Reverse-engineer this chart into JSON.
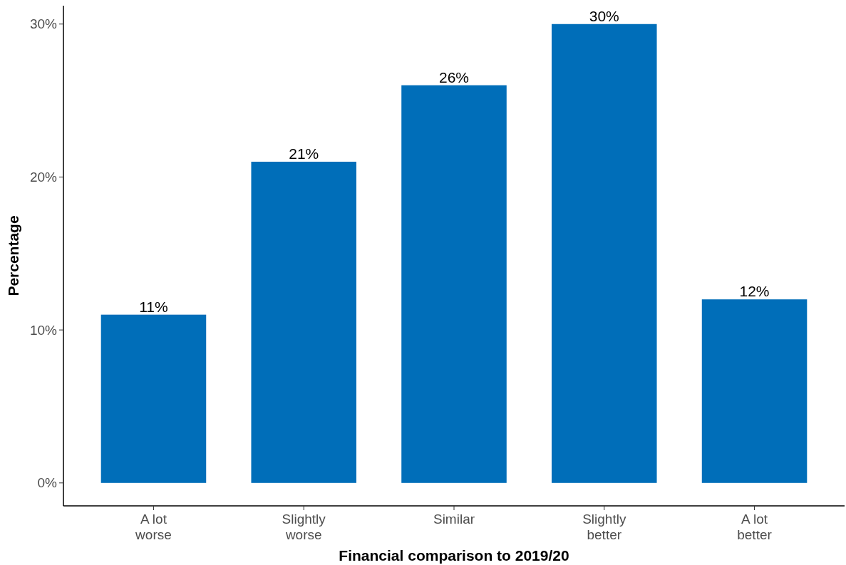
{
  "chart_data": {
    "type": "bar",
    "xlabel": "Financial comparison to 2019/20",
    "ylabel": "Percentage",
    "categories": [
      "A lot\nworse",
      "Slightly\nworse",
      "Similar",
      "Slightly\nbetter",
      "A lot\nbetter"
    ],
    "values": [
      11,
      21,
      26,
      30,
      12
    ],
    "value_labels": [
      "11%",
      "21%",
      "26%",
      "30%",
      "12%"
    ],
    "color": "#006eb9",
    "ylim": [
      -1.5,
      31.2
    ],
    "yticks": [
      {
        "value": 0,
        "label": "0%"
      },
      {
        "value": 10,
        "label": "10%"
      },
      {
        "value": 20,
        "label": "20%"
      },
      {
        "value": 30,
        "label": "30%"
      }
    ],
    "grid": false
  }
}
